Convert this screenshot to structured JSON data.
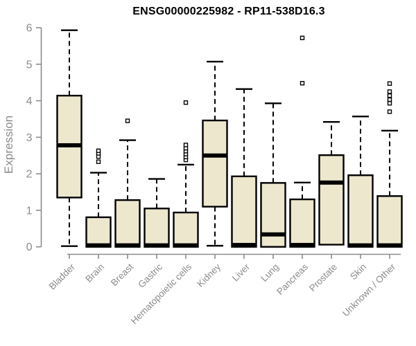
{
  "chart_data": {
    "type": "boxplot",
    "title": "ENSG00000225982 - RP11-538D16.3",
    "ylabel": "Expression",
    "xlabel": "",
    "ylim": [
      0,
      6
    ],
    "yticks": [
      0,
      1,
      2,
      3,
      4,
      5,
      6
    ],
    "grid": "off",
    "legend": "none",
    "categories": [
      "Bladder",
      "Brain",
      "Breast",
      "Gastric",
      "Hematopoietic cells",
      "Kidney",
      "Liver",
      "Lung",
      "Pancreas",
      "Prostate",
      "Skin",
      "Unknown / Other"
    ],
    "series": [
      {
        "category": "Bladder",
        "low": 0.02,
        "q1": 1.35,
        "median": 2.78,
        "q3": 4.14,
        "high": 5.93,
        "outliers": []
      },
      {
        "category": "Brain",
        "low": 0,
        "q1": 0,
        "median": 0.04,
        "q3": 0.81,
        "high": 2.03,
        "outliers": [
          2.33,
          2.47,
          2.56,
          2.63
        ]
      },
      {
        "category": "Breast",
        "low": 0,
        "q1": 0,
        "median": 0.04,
        "q3": 1.28,
        "high": 2.92,
        "outliers": [
          3.45
        ]
      },
      {
        "category": "Gastric",
        "low": 0,
        "q1": 0,
        "median": 0.04,
        "q3": 1.05,
        "high": 1.86,
        "outliers": []
      },
      {
        "category": "Hematopoietic cells",
        "low": 0,
        "q1": 0,
        "median": 0.04,
        "q3": 0.94,
        "high": 2.25,
        "outliers": [
          2.38,
          2.46,
          2.54,
          2.62,
          2.7,
          2.79,
          3.95
        ]
      },
      {
        "category": "Kidney",
        "low": 0.03,
        "q1": 1.1,
        "median": 2.5,
        "q3": 3.46,
        "high": 5.07,
        "outliers": []
      },
      {
        "category": "Liver",
        "low": 0,
        "q1": 0,
        "median": 0.05,
        "q3": 1.93,
        "high": 4.32,
        "outliers": []
      },
      {
        "category": "Lung",
        "low": 0,
        "q1": 0,
        "median": 0.34,
        "q3": 1.75,
        "high": 3.93,
        "outliers": []
      },
      {
        "category": "Pancreas",
        "low": 0,
        "q1": 0,
        "median": 0.05,
        "q3": 1.3,
        "high": 1.76,
        "outliers": [
          4.48,
          5.72
        ]
      },
      {
        "category": "Prostate",
        "low": 0.06,
        "q1": 0.06,
        "median": 1.76,
        "q3": 2.51,
        "high": 3.42,
        "outliers": []
      },
      {
        "category": "Skin",
        "low": 0,
        "q1": 0,
        "median": 0.04,
        "q3": 1.96,
        "high": 3.57,
        "outliers": []
      },
      {
        "category": "Unknown / Other",
        "low": 0,
        "q1": 0,
        "median": 0.04,
        "q3": 1.39,
        "high": 3.18,
        "outliers": [
          3.7,
          3.93,
          4.03,
          4.14,
          4.25,
          4.47
        ]
      }
    ],
    "colors": {
      "box_fill": "#EDE7CE",
      "box_stroke": "#000000",
      "median": "#000000",
      "whisker": "#000000",
      "outlier_stroke": "#000000",
      "axis": "#8B8B8B",
      "tick_label": "#8B8B8B",
      "title": "#000000",
      "background": "#FFFFFF"
    }
  }
}
